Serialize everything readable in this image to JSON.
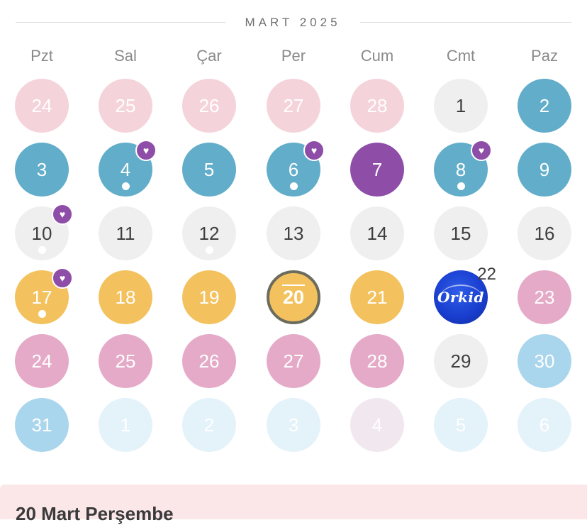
{
  "month_title": "MART 2025",
  "weekdays": [
    "Pzt",
    "Sal",
    "Çar",
    "Per",
    "Cum",
    "Cmt",
    "Paz"
  ],
  "colors": {
    "prev_month_pink": "#f5d3da",
    "neutral_grey": "#efefef",
    "teal": "#62adc9",
    "purple": "#8e4ea8",
    "yellow": "#f3c25f",
    "pink": "#e5aac8",
    "light_blue": "#a9d6ec",
    "next_month_faint_blue": "#e4f2fa",
    "next_month_faint_pink": "#f1e8ef",
    "brand_logo_blue": "#1a3fd0",
    "panel_background": "#fbe6e8"
  },
  "weeks": [
    [
      {
        "label": "24",
        "color": "prev_month_pink"
      },
      {
        "label": "25",
        "color": "prev_month_pink"
      },
      {
        "label": "26",
        "color": "prev_month_pink"
      },
      {
        "label": "27",
        "color": "prev_month_pink"
      },
      {
        "label": "28",
        "color": "prev_month_pink"
      },
      {
        "label": "1",
        "color": "neutral_grey"
      },
      {
        "label": "2",
        "color": "teal"
      }
    ],
    [
      {
        "label": "3",
        "color": "teal"
      },
      {
        "label": "4",
        "color": "teal",
        "heart": true,
        "dot": true
      },
      {
        "label": "5",
        "color": "teal"
      },
      {
        "label": "6",
        "color": "teal",
        "heart": true,
        "dot": true
      },
      {
        "label": "7",
        "color": "purple"
      },
      {
        "label": "8",
        "color": "teal",
        "heart": true,
        "dot": true
      },
      {
        "label": "9",
        "color": "teal"
      }
    ],
    [
      {
        "label": "10",
        "color": "neutral_grey",
        "heart": true,
        "dot": true
      },
      {
        "label": "11",
        "color": "neutral_grey"
      },
      {
        "label": "12",
        "color": "neutral_grey",
        "dot": true
      },
      {
        "label": "13",
        "color": "neutral_grey"
      },
      {
        "label": "14",
        "color": "neutral_grey"
      },
      {
        "label": "15",
        "color": "neutral_grey"
      },
      {
        "label": "16",
        "color": "neutral_grey"
      }
    ],
    [
      {
        "label": "17",
        "color": "yellow",
        "heart": true,
        "dot": true
      },
      {
        "label": "18",
        "color": "yellow"
      },
      {
        "label": "19",
        "color": "yellow"
      },
      {
        "label": "20",
        "color": "yellow",
        "today": true
      },
      {
        "label": "21",
        "color": "yellow"
      },
      {
        "label": "22",
        "color": "brand_logo_blue",
        "logo": "Orkid",
        "icon": "orkid-logo-icon"
      },
      {
        "label": "23",
        "color": "pink"
      }
    ],
    [
      {
        "label": "24",
        "color": "pink"
      },
      {
        "label": "25",
        "color": "pink"
      },
      {
        "label": "26",
        "color": "pink"
      },
      {
        "label": "27",
        "color": "pink"
      },
      {
        "label": "28",
        "color": "pink"
      },
      {
        "label": "29",
        "color": "neutral_grey"
      },
      {
        "label": "30",
        "color": "light_blue"
      }
    ],
    [
      {
        "label": "31",
        "color": "light_blue"
      },
      {
        "label": "1",
        "color": "next_month_faint_blue"
      },
      {
        "label": "2",
        "color": "next_month_faint_blue"
      },
      {
        "label": "3",
        "color": "next_month_faint_blue"
      },
      {
        "label": "4",
        "color": "next_month_faint_pink"
      },
      {
        "label": "5",
        "color": "next_month_faint_blue"
      },
      {
        "label": "6",
        "color": "next_month_faint_blue"
      }
    ]
  ],
  "icons": {
    "heart": "heart-icon",
    "dot": "dot-indicator"
  },
  "selected_day_title": "20 Mart Perşembe"
}
